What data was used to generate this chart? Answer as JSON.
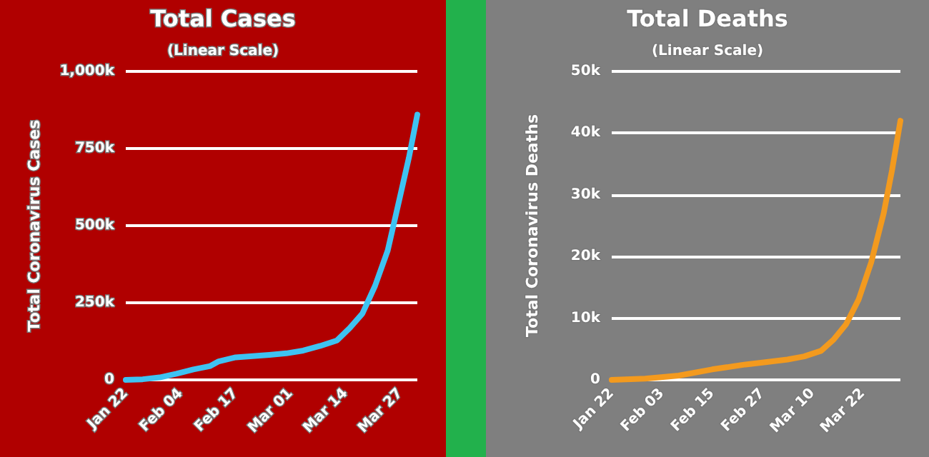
{
  "chart_data": [
    {
      "type": "line",
      "title": "Total Cases",
      "subtitle": "(Linear Scale)",
      "ylabel": "Total Coronavirus Cases",
      "x": [
        "--01-22",
        "--01-26",
        "--01-30",
        "--02-03",
        "--02-07",
        "--02-11",
        "--02-13",
        "--02-17",
        "--02-21",
        "--02-25",
        "--02-29",
        "--03-04",
        "--03-08",
        "--03-12",
        "--03-15",
        "--03-18",
        "--03-21",
        "--03-24",
        "--03-27",
        "--03-29",
        "--03-31"
      ],
      "series": [
        {
          "color": "#3ec3f2",
          "values": [
            0,
            2000,
            8000,
            20000,
            34000,
            45000,
            60000,
            73000,
            77000,
            81000,
            86000,
            95000,
            110000,
            128000,
            168000,
            215000,
            305000,
            420000,
            600000,
            720000,
            860000
          ]
        }
      ],
      "xlim": [
        "--01-22",
        "--03-31"
      ],
      "xticks": [
        {
          "value": "--01-22",
          "label": "Jan 22"
        },
        {
          "value": "--02-04",
          "label": "Feb 04"
        },
        {
          "value": "--02-17",
          "label": "Feb 17"
        },
        {
          "value": "--03-01",
          "label": "Mar 01"
        },
        {
          "value": "--03-14",
          "label": "Mar 14"
        },
        {
          "value": "--03-27",
          "label": "Mar 27"
        }
      ],
      "ylim": [
        0,
        1000000
      ],
      "yticks": [
        {
          "value": 0,
          "label": "0"
        },
        {
          "value": 250000,
          "label": "250k"
        },
        {
          "value": 500000,
          "label": "500k"
        },
        {
          "value": 750000,
          "label": "750k"
        },
        {
          "value": 1000000,
          "label": "1,000k"
        }
      ],
      "grid": "y",
      "marker": "none",
      "line_style": "solid"
    },
    {
      "type": "line",
      "title": "Total Deaths",
      "subtitle": "(Linear Scale)",
      "ylabel": "Total Coronavirus Deaths",
      "x": [
        "--01-22",
        "--01-30",
        "--02-07",
        "--02-15",
        "--02-23",
        "--02-27",
        "--03-04",
        "--03-08",
        "--03-12",
        "--03-15",
        "--03-18",
        "--03-21",
        "--03-24",
        "--03-27",
        "--03-29",
        "--03-31"
      ],
      "series": [
        {
          "color": "#f39a1e",
          "values": [
            0,
            200,
            700,
            1700,
            2500,
            2800,
            3300,
            3800,
            4700,
            6500,
            9000,
            13000,
            19000,
            27000,
            34000,
            42000
          ]
        }
      ],
      "xlim": [
        "--01-22",
        "--03-31"
      ],
      "xticks": [
        {
          "value": "--01-22",
          "label": "Jan 22"
        },
        {
          "value": "--02-03",
          "label": "Feb 03"
        },
        {
          "value": "--02-15",
          "label": "Feb 15"
        },
        {
          "value": "--02-27",
          "label": "Feb 27"
        },
        {
          "value": "--03-10",
          "label": "Mar 10"
        },
        {
          "value": "--03-22",
          "label": "Mar 22"
        }
      ],
      "ylim": [
        0,
        50000
      ],
      "yticks": [
        {
          "value": 0,
          "label": "0"
        },
        {
          "value": 10000,
          "label": "10k"
        },
        {
          "value": 20000,
          "label": "20k"
        },
        {
          "value": 30000,
          "label": "30k"
        },
        {
          "value": 40000,
          "label": "40k"
        },
        {
          "value": 50000,
          "label": "50k"
        }
      ],
      "grid": "y",
      "marker": "none",
      "line_style": "solid"
    }
  ]
}
